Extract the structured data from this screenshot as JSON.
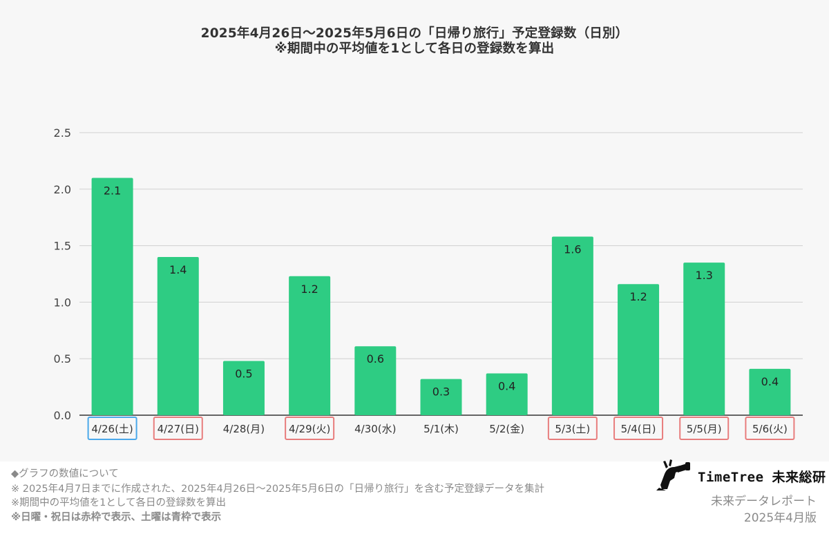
{
  "chart_data": {
    "type": "bar",
    "title": "2025年4月26日〜2025年5月6日の「日帰り旅行」予定登録数（日別）",
    "subtitle": "※期間中の平均値を1として各日の登録数を算出",
    "categories": [
      "4/26(土)",
      "4/27(日)",
      "4/28(月)",
      "4/29(火)",
      "4/30(水)",
      "5/1(木)",
      "5/2(金)",
      "5/3(土)",
      "5/4(日)",
      "5/5(月)",
      "5/6(火)"
    ],
    "values": [
      2.1,
      1.4,
      0.48,
      1.23,
      0.61,
      0.32,
      0.37,
      1.58,
      1.16,
      1.35,
      0.41
    ],
    "data_labels": [
      "2.1",
      "1.4",
      "0.5",
      "1.2",
      "0.6",
      "0.3",
      "0.4",
      "1.6",
      "1.2",
      "1.3",
      "0.4"
    ],
    "category_frames": [
      "saturday",
      "holiday",
      "none",
      "holiday",
      "none",
      "none",
      "none",
      "holiday",
      "holiday",
      "holiday",
      "holiday"
    ],
    "ylim": [
      0,
      2.5
    ],
    "yticks": [
      "0.0",
      "0.5",
      "1.0",
      "1.5",
      "2.0",
      "2.5"
    ],
    "grid": true,
    "legend": "none",
    "xlabel": "",
    "ylabel": ""
  },
  "colors": {
    "bar": "#2ecc83",
    "saturday_frame": "#4aa8ea",
    "holiday_frame": "#e87d7d",
    "grid": "#d0d0d0",
    "panel": "#f7f7f7"
  },
  "footer": {
    "heading": "◆グラフの数値について",
    "note_1": "※ 2025年4月7日までに作成された、2025年4月26日〜2025年5月6日の「日帰り旅行」を含む予定登録データを集計",
    "note_2": "※期間中の平均値を1として各日の登録数を算出",
    "note_3": "※日曜・祝日は赤枠で表示、土曜は青枠で表示"
  },
  "brand": {
    "icon": "binoculars-person-icon",
    "name": "TimeTree 未来総研",
    "report_label": "未来データレポート",
    "report_date": "2025年4月版"
  }
}
